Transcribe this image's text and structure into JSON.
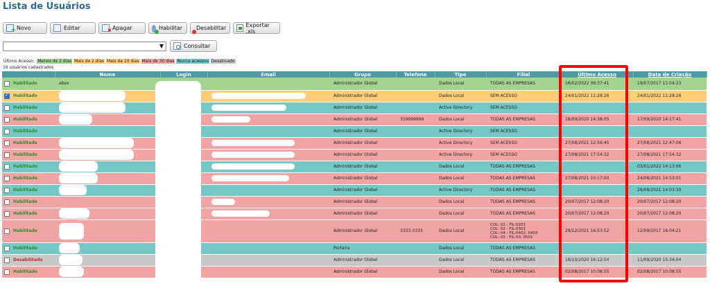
{
  "page_title": "Lista de Usuários",
  "toolbar": {
    "new_label": "Novo",
    "edit_label": "Editar",
    "delete_label": "Apagar",
    "enable_label": "Habilitar",
    "disable_label": "Desabilitar",
    "export_label": "Exportar .xls"
  },
  "filter": {
    "selected": "",
    "consult_label": "Consultar"
  },
  "legend": {
    "prefix": "Último Acesso:",
    "items": [
      {
        "label": "Menos de 2 dias",
        "color": "#a3d391"
      },
      {
        "label": "Mais de 2 dias",
        "color": "#ffcc7a"
      },
      {
        "label": "Mais de 10 dias",
        "color": "#ffcc7a"
      },
      {
        "label": "Mais de 30 dias",
        "color": "#f2a3a3"
      },
      {
        "label": "Nunca acessou",
        "color": "#74c8c6"
      },
      {
        "label": "Desativado",
        "color": "#c8c8c8"
      }
    ]
  },
  "count_text": "16 usuários cadastrados",
  "columns": {
    "nome": "Nome",
    "login": "Login",
    "email": "Email",
    "grupo": "Grupo",
    "telefone": "Telefone",
    "tipo": "Tipo",
    "filial": "Filial",
    "ultimo_acesso": "Último Acesso",
    "data_criacao": "Data de Criação"
  },
  "rows": [
    {
      "row_class": "row-green",
      "checked": false,
      "status": "Habilitado",
      "status_class": "st-ok",
      "nome": "abex",
      "mask_w": 0,
      "email_mask_w": 0,
      "grupo": "Administrador Global",
      "telefone": "",
      "tipo": "Dados Local",
      "filial": "TODAS AS EMPRESAS",
      "ultimo": "16/02/2022 09:37:41",
      "criacao": "19/07/2017 11:04:23",
      "h": 18
    },
    {
      "row_class": "row-orange",
      "checked": true,
      "status": "Habilitado",
      "status_class": "st-ok",
      "nome": "",
      "mask_w": 96,
      "email_mask_w": 136,
      "grupo": "Administrador Global",
      "telefone": "",
      "tipo": "Dados Local",
      "filial": "SEM ACESSO",
      "ultimo": "24/01/2022 11:28:26",
      "criacao": "24/01/2022 11:28:26",
      "h": 17
    },
    {
      "row_class": "row-cyan",
      "checked": false,
      "status": "Habilitado",
      "status_class": "st-ok",
      "nome": "",
      "mask_w": 96,
      "email_mask_w": 108,
      "grupo": "Administrador Global",
      "telefone": "",
      "tipo": "Active Directory",
      "filial": "SEM ACESSO",
      "ultimo": "",
      "criacao": "",
      "h": 17
    },
    {
      "row_class": "row-red",
      "checked": false,
      "status": "Habilitado",
      "status_class": "st-ok",
      "nome": "",
      "mask_w": 48,
      "email_mask_w": 56,
      "grupo": "Administrador Global",
      "telefone": "319999999",
      "tipo": "Dados Local",
      "filial": "TODAS AS EMPRESAS",
      "ultimo": "18/09/2020 14:38:05",
      "criacao": "17/09/2020 14:17:41",
      "h": 17
    },
    {
      "row_class": "row-cyan",
      "checked": false,
      "status": "Habilitado",
      "status_class": "st-ok",
      "nome": "",
      "mask_w": 0,
      "email_mask_w": 0,
      "grupo": "Administrador Global",
      "telefone": "",
      "tipo": "Active Directory",
      "filial": "SEM ACESSO",
      "ultimo": "",
      "criacao": "",
      "h": 17
    },
    {
      "row_class": "row-red",
      "checked": false,
      "status": "Habilitado",
      "status_class": "st-ok",
      "nome": "",
      "mask_w": 108,
      "email_mask_w": 120,
      "grupo": "Administrador Global",
      "telefone": "",
      "tipo": "Active Directory",
      "filial": "SEM ACESSO",
      "ultimo": "27/08/2021 12:56:45",
      "criacao": "27/08/2021 12:47:06",
      "h": 17
    },
    {
      "row_class": "row-red",
      "checked": false,
      "status": "Habilitado",
      "status_class": "st-ok",
      "nome": "",
      "mask_w": 108,
      "email_mask_w": 120,
      "grupo": "Administrador Global",
      "telefone": "",
      "tipo": "Active Directory",
      "filial": "SEM ACESSO",
      "ultimo": "27/08/2021 17:54:32",
      "criacao": "27/08/2021 17:54:32",
      "h": 17
    },
    {
      "row_class": "row-cyan",
      "checked": false,
      "status": "Habilitado",
      "status_class": "st-ok",
      "nome": "",
      "mask_w": 56,
      "email_mask_w": 120,
      "grupo": "Administrador Global",
      "telefone": "",
      "tipo": "Dados Local",
      "filial": "TODAS AS EMPRESAS",
      "ultimo": "",
      "criacao": "03/01/2022 14:13:06",
      "h": 17
    },
    {
      "row_class": "row-red",
      "checked": false,
      "status": "Habilitado",
      "status_class": "st-ok",
      "nome": "",
      "mask_w": 56,
      "email_mask_w": 112,
      "grupo": "Administrador Global",
      "telefone": "",
      "tipo": "Dados Local",
      "filial": "TODAS AS EMPRESAS",
      "ultimo": "27/08/2021 10:17:00",
      "criacao": "24/08/2021 14:53:01",
      "h": 17
    },
    {
      "row_class": "row-cyan",
      "checked": false,
      "status": "Habilitado",
      "status_class": "st-ok",
      "nome": "",
      "mask_w": 40,
      "email_mask_w": 0,
      "grupo": "Administrador Global",
      "telefone": "",
      "tipo": "Active Directory",
      "filial": "TODAS AS EMPRESAS",
      "ultimo": "",
      "criacao": "26/08/2021 14:03:30",
      "h": 17
    },
    {
      "row_class": "row-red",
      "checked": false,
      "status": "Habilitado",
      "status_class": "st-ok",
      "nome": "",
      "mask_w": 0,
      "email_mask_w": 34,
      "grupo": "Administrador Global",
      "telefone": "",
      "tipo": "Dados Local",
      "filial": "TODAS AS EMPRESAS",
      "ultimo": "20/07/2017 12:08:20",
      "criacao": "20/07/2017 12:08:20",
      "h": 17
    },
    {
      "row_class": "row-red",
      "checked": false,
      "status": "Habilitado",
      "status_class": "st-ok",
      "nome": "",
      "mask_w": 44,
      "email_mask_w": 84,
      "grupo": "Administrador Global",
      "telefone": "",
      "tipo": "Dados Local",
      "filial": "TODAS AS EMPRESAS",
      "ultimo": "20/07/2017 12:08:20",
      "criacao": "20/07/2017 12:08:20",
      "h": 17
    },
    {
      "row_class": "row-red",
      "checked": false,
      "status": "Habilitado",
      "status_class": "st-ok",
      "nome": "",
      "mask_w": 36,
      "email_mask_w": 0,
      "grupo": "Administrador Global",
      "telefone": "3333-3333",
      "tipo": "Dados Local",
      "filial": "COL: 02 - FIL:0201\nCOL: 02 - FIL:0301\nCOL: 04 - FIL:0402; 0403\nCOL: 05 - FIL:03; 0501",
      "ultimo": "28/12/2021 16:53:52",
      "criacao": "12/09/2017 16:04:21",
      "h": 33
    },
    {
      "row_class": "row-cyan",
      "checked": false,
      "status": "Habilitado",
      "status_class": "st-ok",
      "nome": "",
      "mask_w": 30,
      "email_mask_w": 0,
      "grupo": "Portaria",
      "telefone": "",
      "tipo": "Dados Local",
      "filial": "TODAS AS EMPRESAS",
      "ultimo": "",
      "criacao": "",
      "h": 17
    },
    {
      "row_class": "row-grey",
      "checked": false,
      "status": "Desabilitado",
      "status_class": "st-off",
      "nome": "",
      "mask_w": 34,
      "email_mask_w": 0,
      "grupo": "Administrador Global",
      "telefone": "",
      "tipo": "Dados Local",
      "filial": "TODAS AS EMPRESAS",
      "ultimo": "16/10/2020 16:12:54",
      "criacao": "11/09/2020 15:34:04",
      "h": 17
    },
    {
      "row_class": "row-red",
      "checked": false,
      "status": "Habilitado",
      "status_class": "st-ok",
      "nome": "",
      "mask_w": 36,
      "email_mask_w": 0,
      "grupo": "Administrador Global",
      "telefone": "",
      "tipo": "Dados Local",
      "filial": "TODAS AS EMPRESAS",
      "ultimo": "02/08/2017 10:08:55",
      "criacao": "02/08/2017 10:08:55",
      "h": 17
    }
  ]
}
